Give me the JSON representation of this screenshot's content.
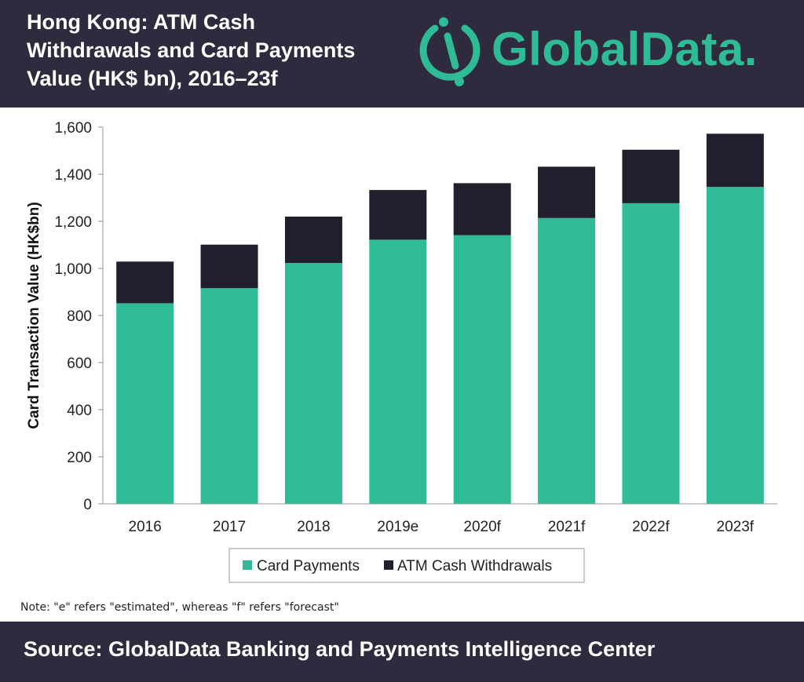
{
  "header": {
    "title_lines": [
      "Hong Kong: ATM Cash",
      "Withdrawals and Card Payments",
      "Value (HK$ bn), 2016–23f"
    ],
    "logo_text": "GlobalData."
  },
  "chart_data": {
    "type": "bar",
    "stacked": true,
    "title": "Hong Kong: ATM Cash Withdrawals and Card Payments Value (HK$ bn), 2016–23f",
    "xlabel": "",
    "ylabel": "Card Transaction Value (HK$bn)",
    "categories": [
      "2016",
      "2017",
      "2018",
      "2019e",
      "2020f",
      "2021f",
      "2022f",
      "2023f"
    ],
    "series": [
      {
        "name": "Card Payments",
        "color": "#2ebb95",
        "values": [
          852,
          916,
          1023,
          1122,
          1141,
          1214,
          1277,
          1346
        ]
      },
      {
        "name": "ATM Cash Withdrawals",
        "color": "#211e2e",
        "values": [
          177,
          185,
          197,
          211,
          221,
          218,
          227,
          226
        ]
      }
    ],
    "ylim": [
      0,
      1600
    ],
    "yticks": [
      0,
      200,
      400,
      600,
      800,
      1000,
      1200,
      1400,
      1600
    ],
    "ytick_labels": [
      "0",
      "200",
      "400",
      "600",
      "800",
      "1,000",
      "1,200",
      "1,400",
      "1,600"
    ],
    "grid": false,
    "legend_position": "bottom"
  },
  "note": "Note: \"e\" refers \"estimated\",  whereas \"f\" refers \"forecast\"",
  "footer": {
    "source": "Source: GlobalData Banking and Payments Intelligence Center"
  }
}
